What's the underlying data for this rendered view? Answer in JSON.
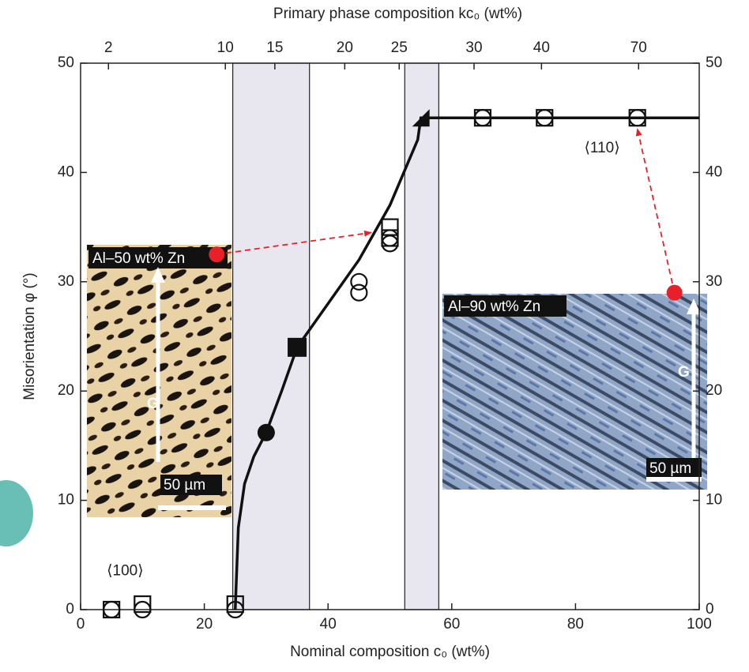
{
  "chart_data": {
    "type": "scatter",
    "xlabel": "Nominal composition c₀ (wt%)",
    "ylabel": "Misorientation φ (°)",
    "x2label": "Primary phase composition kc₀ (wt%)",
    "xlim": [
      0,
      100
    ],
    "xticks": [
      0,
      20,
      40,
      60,
      80,
      100
    ],
    "ylim": [
      0,
      50
    ],
    "yticks": [
      0,
      10,
      20,
      30,
      40,
      50
    ],
    "y2lim": [
      0,
      50
    ],
    "y2ticks": [
      0,
      10,
      20,
      30,
      40,
      50
    ],
    "x2ticks": [
      {
        "value": 4.5,
        "label": "2"
      },
      {
        "value": 23.4,
        "label": "10"
      },
      {
        "value": 31.4,
        "label": "15"
      },
      {
        "value": 42.7,
        "label": "20"
      },
      {
        "value": 51.5,
        "label": "25"
      },
      {
        "value": 63.6,
        "label": "30"
      },
      {
        "value": 74.5,
        "label": "40"
      },
      {
        "value": 90.2,
        "label": "70"
      }
    ],
    "bands": [
      [
        24.6,
        37
      ],
      [
        52.4,
        57.9
      ]
    ],
    "band_color": "#e8e7ef",
    "series": [
      {
        "marker": "circle-open",
        "x": [
          5,
          10,
          25,
          45,
          45,
          50,
          50,
          65,
          75,
          90
        ],
        "values": [
          0,
          0,
          0,
          30,
          29,
          34,
          33.5,
          45,
          45,
          45
        ]
      },
      {
        "marker": "square-open",
        "x": [
          5,
          10,
          25,
          50,
          50,
          65,
          75,
          90
        ],
        "values": [
          0,
          0.5,
          0.5,
          35,
          34,
          45,
          45,
          45
        ]
      },
      {
        "marker": "circle-filled",
        "x": [
          30
        ],
        "values": [
          16.2
        ]
      },
      {
        "marker": "square-filled",
        "x": [
          35
        ],
        "values": [
          24
        ]
      },
      {
        "marker": "triangle-filled",
        "x": [
          55
        ],
        "values": [
          45
        ]
      }
    ],
    "curve": {
      "color": "#111",
      "x": [
        25,
        25.5,
        26.5,
        28,
        30,
        32.5,
        35,
        40,
        45,
        50,
        53,
        54.5,
        55,
        100
      ],
      "values": [
        0,
        7.5,
        11.5,
        14,
        16.2,
        20,
        24,
        28,
        32,
        37,
        41,
        43,
        45,
        45
      ]
    },
    "annotations": [
      {
        "text": "⟨100⟩",
        "x": 7.2,
        "y": 3.5
      },
      {
        "text": "⟨110⟩",
        "x": 84.3,
        "y": 42.2
      }
    ],
    "arrows": [
      {
        "from": [
          22,
          32.5
        ],
        "to": [
          47,
          34.5
        ]
      },
      {
        "from": [
          96,
          29
        ],
        "to": [
          90,
          44
        ]
      }
    ],
    "arrow_color": "#e8202a",
    "insets": [
      {
        "label": "Al–50 wt% Zn",
        "scale": "50 µm",
        "arrow": "G"
      },
      {
        "label": "Al–90 wt% Zn",
        "scale": "50 µm",
        "arrow": "G"
      }
    ]
  }
}
